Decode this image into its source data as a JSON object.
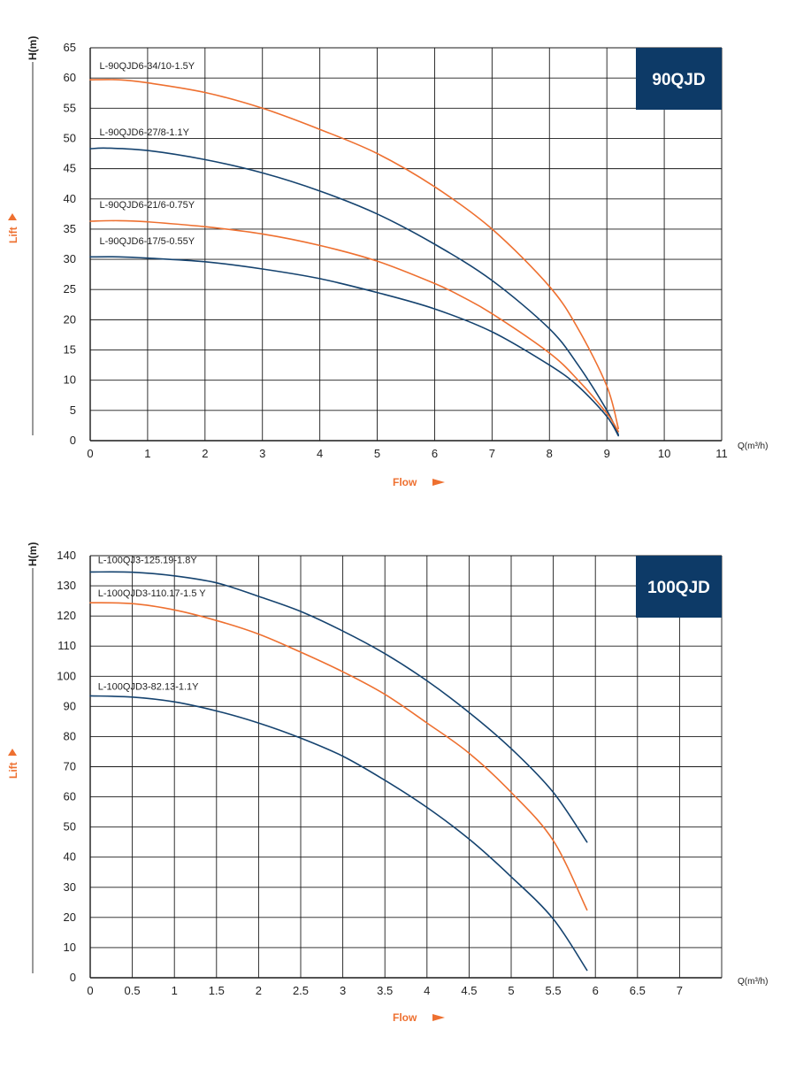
{
  "colors": {
    "orange": "#ee7030",
    "navy": "#15436f",
    "badge": "#0d3a67",
    "grid": "#1a1a1a",
    "axis_word": "#ee7030"
  },
  "chart_data": [
    {
      "type": "line",
      "badge": "90QJD",
      "ylabel": "H(m)",
      "ylabel_side": "Lift",
      "xlabel": "Flow",
      "x_unit": "Q(m³/h)",
      "xlim": [
        0,
        11
      ],
      "ylim": [
        0,
        65
      ],
      "x_ticks": [
        "0",
        "1",
        "2",
        "3",
        "4",
        "5",
        "6",
        "7",
        "8",
        "9",
        "10",
        "11"
      ],
      "y_ticks": [
        "0",
        "5",
        "10",
        "15",
        "20",
        "25",
        "30",
        "35",
        "40",
        "45",
        "50",
        "55",
        "60",
        "65"
      ],
      "grid": true,
      "series": [
        {
          "name": "L-90QJD6-34/10-1.5Y",
          "color": "orange",
          "label_pos": [
            0.1,
            61.5
          ],
          "points": [
            [
              0,
              59.7
            ],
            [
              0.5,
              59.7
            ],
            [
              1,
              59.2
            ],
            [
              2,
              57.6
            ],
            [
              3,
              55.0
            ],
            [
              4,
              51.5
            ],
            [
              5,
              47.5
            ],
            [
              6,
              42.0
            ],
            [
              7,
              35.0
            ],
            [
              8,
              25.5
            ],
            [
              8.5,
              18.5
            ],
            [
              9,
              9.0
            ],
            [
              9.2,
              2.0
            ]
          ]
        },
        {
          "name": "L-90QJD6-27/8-1.1Y",
          "color": "navy",
          "label_pos": [
            0.1,
            50.5
          ],
          "points": [
            [
              0,
              48.3
            ],
            [
              0.3,
              48.4
            ],
            [
              1,
              48.0
            ],
            [
              2,
              46.5
            ],
            [
              3,
              44.3
            ],
            [
              4,
              41.3
            ],
            [
              5,
              37.5
            ],
            [
              6,
              32.5
            ],
            [
              7,
              26.5
            ],
            [
              8,
              18.5
            ],
            [
              8.5,
              12.5
            ],
            [
              9,
              5.0
            ],
            [
              9.2,
              1.0
            ]
          ]
        },
        {
          "name": "L-90QJD6-21/6-0.75Y",
          "color": "orange",
          "label_pos": [
            0.1,
            38.5
          ],
          "points": [
            [
              0,
              36.3
            ],
            [
              0.5,
              36.4
            ],
            [
              1,
              36.2
            ],
            [
              2,
              35.4
            ],
            [
              3,
              34.2
            ],
            [
              4,
              32.3
            ],
            [
              5,
              29.7
            ],
            [
              6,
              26.0
            ],
            [
              6.5,
              23.7
            ],
            [
              7,
              21.0
            ],
            [
              8,
              14.5
            ],
            [
              8.5,
              10.0
            ],
            [
              9,
              4.5
            ],
            [
              9.2,
              1.5
            ]
          ]
        },
        {
          "name": "L-90QJD6-17/5-0.55Y",
          "color": "navy",
          "label_pos": [
            0.1,
            32.5
          ],
          "points": [
            [
              0,
              30.4
            ],
            [
              0.5,
              30.4
            ],
            [
              1,
              30.2
            ],
            [
              2,
              29.6
            ],
            [
              3,
              28.4
            ],
            [
              4,
              26.8
            ],
            [
              5,
              24.5
            ],
            [
              6,
              21.8
            ],
            [
              7,
              18.0
            ],
            [
              8,
              12.5
            ],
            [
              8.5,
              9.0
            ],
            [
              9,
              4.0
            ],
            [
              9.2,
              0.8
            ]
          ]
        }
      ]
    },
    {
      "type": "line",
      "badge": "100QJD",
      "ylabel": "H(m)",
      "ylabel_side": "Lift",
      "xlabel": "Flow",
      "x_unit": "Q(m³/h)",
      "xlim": [
        0,
        7.5
      ],
      "ylim": [
        0,
        140
      ],
      "x_ticks": [
        "0",
        "0.5",
        "1",
        "1.5",
        "2",
        "2.5",
        "3",
        "3.5",
        "4",
        "4.5",
        "5",
        "5.5",
        "6",
        "6.5",
        "7"
      ],
      "y_ticks": [
        "0",
        "10",
        "20",
        "30",
        "40",
        "50",
        "60",
        "70",
        "80",
        "90",
        "100",
        "110",
        "120",
        "130",
        "140"
      ],
      "grid": true,
      "series": [
        {
          "name": "L-100QJ3-125.19-1.8Y",
          "color": "navy",
          "label_pos": [
            0.05,
            137.5
          ],
          "points": [
            [
              0,
              134.6
            ],
            [
              0.5,
              134.5
            ],
            [
              1,
              133.3
            ],
            [
              1.5,
              131.0
            ],
            [
              2,
              126.5
            ],
            [
              2.5,
              121.5
            ],
            [
              3,
              115.0
            ],
            [
              3.5,
              107.5
            ],
            [
              4,
              98.5
            ],
            [
              4.5,
              88.0
            ],
            [
              5,
              76.0
            ],
            [
              5.5,
              61.5
            ],
            [
              5.9,
              45.0
            ]
          ]
        },
        {
          "name": "L-100QJD3-110.17-1.5 Y",
          "color": "orange",
          "label_pos": [
            0.05,
            126.5
          ],
          "points": [
            [
              0,
              124.4
            ],
            [
              0.5,
              124.1
            ],
            [
              1,
              122.0
            ],
            [
              1.5,
              118.5
            ],
            [
              2,
              114.0
            ],
            [
              2.5,
              108.0
            ],
            [
              3,
              101.5
            ],
            [
              3.5,
              94.0
            ],
            [
              4,
              84.5
            ],
            [
              4.5,
              74.5
            ],
            [
              5,
              61.5
            ],
            [
              5.5,
              45.5
            ],
            [
              5.9,
              22.5
            ]
          ]
        },
        {
          "name": "L-100QJD3-82.13-1.1Y",
          "color": "navy",
          "label_pos": [
            0.05,
            95.5
          ],
          "points": [
            [
              0,
              93.5
            ],
            [
              0.5,
              93.1
            ],
            [
              1,
              91.5
            ],
            [
              1.5,
              88.5
            ],
            [
              2,
              84.5
            ],
            [
              2.5,
              79.5
            ],
            [
              3,
              73.5
            ],
            [
              3.5,
              65.5
            ],
            [
              4,
              56.5
            ],
            [
              4.5,
              46.0
            ],
            [
              5,
              33.5
            ],
            [
              5.5,
              19.5
            ],
            [
              5.9,
              2.5
            ]
          ]
        }
      ]
    }
  ]
}
